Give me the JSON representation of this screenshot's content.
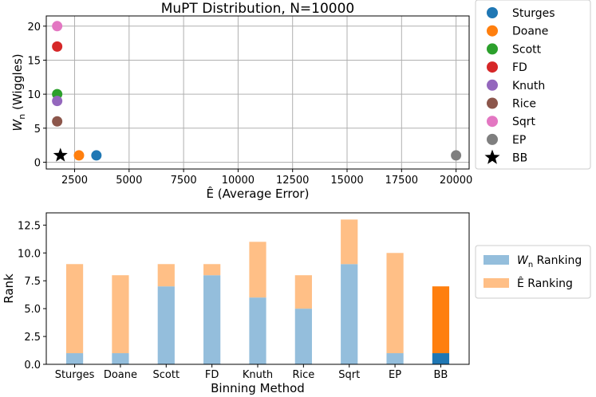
{
  "chart_data": [
    {
      "type": "scatter",
      "title": "MuPT Distribution, N=10000",
      "xlabel_symbol": "Ê",
      "xlabel": " (Average Error)",
      "ylabel_symbol": "W",
      "ylabel_sub": "n",
      "ylabel": " (Wiggles)",
      "xlim": [
        1200,
        20600
      ],
      "ylim": [
        -1,
        21.5
      ],
      "xticks": [
        2500,
        5000,
        7500,
        10000,
        12500,
        15000,
        17500,
        20000
      ],
      "yticks": [
        0,
        5,
        10,
        15,
        20
      ],
      "grid": true,
      "legend_position": "outside-right",
      "series": [
        {
          "name": "Sturges",
          "x": 3500,
          "y": 1,
          "color": "#1f77b4",
          "marker": "circle"
        },
        {
          "name": "Doane",
          "x": 2700,
          "y": 1,
          "color": "#ff7f0e",
          "marker": "circle"
        },
        {
          "name": "Scott",
          "x": 1700,
          "y": 10,
          "color": "#2ca02c",
          "marker": "circle"
        },
        {
          "name": "FD",
          "x": 1700,
          "y": 17,
          "color": "#d62728",
          "marker": "circle"
        },
        {
          "name": "Knuth",
          "x": 1700,
          "y": 9,
          "color": "#9467bd",
          "marker": "circle"
        },
        {
          "name": "Rice",
          "x": 1700,
          "y": 6,
          "color": "#8c564b",
          "marker": "circle"
        },
        {
          "name": "Sqrt",
          "x": 1700,
          "y": 20,
          "color": "#e377c2",
          "marker": "circle"
        },
        {
          "name": "EP",
          "x": 20000,
          "y": 1,
          "color": "#7f7f7f",
          "marker": "circle"
        },
        {
          "name": "BB",
          "x": 1850,
          "y": 1,
          "color": "#000000",
          "marker": "star"
        }
      ]
    },
    {
      "type": "bar",
      "stacked": true,
      "xlabel": "Binning Method",
      "ylabel": "Rank",
      "ylim": [
        0,
        13.6
      ],
      "yticks": [
        "0.0",
        "2.5",
        "5.0",
        "7.5",
        "10.0",
        "12.5"
      ],
      "categories": [
        "Sturges",
        "Doane",
        "Scott",
        "FD",
        "Knuth",
        "Rice",
        "Sqrt",
        "EP",
        "BB"
      ],
      "grid": false,
      "legend_position": "outside-right",
      "series": [
        {
          "name_symbol": "W",
          "name_sub": "n",
          "name": " Ranking",
          "values": [
            1,
            1,
            7,
            8,
            6,
            5,
            9,
            1,
            1
          ],
          "color": "#94bedc",
          "highlight_color": "#1f77b4"
        },
        {
          "name_symbol": "Ê",
          "name": " Ranking",
          "values": [
            8,
            7,
            2,
            1,
            5,
            3,
            4,
            9,
            6
          ],
          "color": "#ffbf86",
          "highlight_color": "#ff7f0e"
        }
      ],
      "highlight_category": "BB"
    }
  ]
}
